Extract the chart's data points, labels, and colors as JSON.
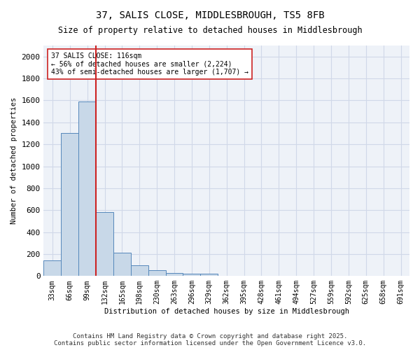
{
  "title1": "37, SALIS CLOSE, MIDDLESBROUGH, TS5 8FB",
  "title2": "Size of property relative to detached houses in Middlesbrough",
  "xlabel": "Distribution of detached houses by size in Middlesbrough",
  "ylabel": "Number of detached properties",
  "bar_values": [
    140,
    1300,
    1590,
    580,
    215,
    100,
    50,
    25,
    20,
    20,
    0,
    0,
    0,
    0,
    0,
    0,
    0,
    0,
    0,
    0,
    0
  ],
  "categories": [
    "33sqm",
    "66sqm",
    "99sqm",
    "132sqm",
    "165sqm",
    "198sqm",
    "230sqm",
    "263sqm",
    "296sqm",
    "329sqm",
    "362sqm",
    "395sqm",
    "428sqm",
    "461sqm",
    "494sqm",
    "527sqm",
    "559sqm",
    "592sqm",
    "625sqm",
    "658sqm",
    "691sqm"
  ],
  "bar_color": "#c8d8e8",
  "bar_edge_color": "#5588bb",
  "grid_color": "#d0d8e8",
  "bg_color": "#eef2f8",
  "vline_color": "#cc2222",
  "vline_x": 2.5,
  "annotation_text": "37 SALIS CLOSE: 116sqm\n← 56% of detached houses are smaller (2,224)\n43% of semi-detached houses are larger (1,707) →",
  "annotation_box_color": "#ffffff",
  "annotation_box_edge_color": "#cc2222",
  "ylim": [
    0,
    2100
  ],
  "yticks": [
    0,
    200,
    400,
    600,
    800,
    1000,
    1200,
    1400,
    1600,
    1800,
    2000
  ],
  "footer": "Contains HM Land Registry data © Crown copyright and database right 2025.\nContains public sector information licensed under the Open Government Licence v3.0."
}
